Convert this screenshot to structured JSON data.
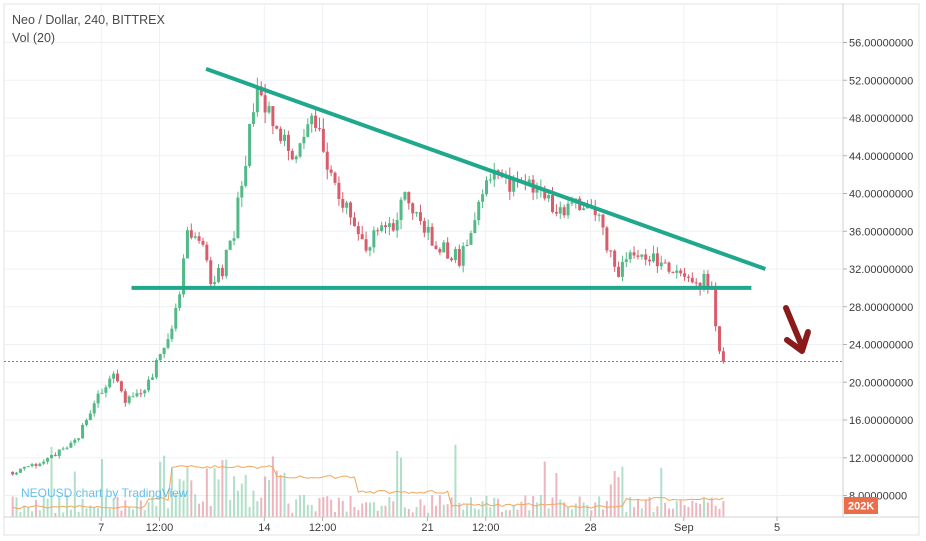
{
  "header": {
    "symbol_line": "Neo / Dollar, 240, BITTREX",
    "volume_line": "Vol (20)"
  },
  "watermark": "NEOUSD chart by TradingView",
  "volume_badge": "202K",
  "colors": {
    "up": "#53b987",
    "down": "#d75d6d",
    "trendline": "#1fa88c",
    "ma_line": "#f2a65a",
    "arrow": "#8b1a1a",
    "badge": "#eb6d4a",
    "grid": "#eef1f4"
  },
  "chart_data": {
    "type": "candlestick",
    "title": "Neo / Dollar, 240, BITTREX",
    "y_axis": {
      "range": [
        7.5,
        59
      ],
      "ticks": [
        8,
        12,
        16,
        20,
        24,
        28,
        32,
        36,
        40,
        44,
        48,
        52,
        56
      ],
      "tick_labels": [
        "8.00000000",
        "12.00000000",
        "16.00000000",
        "20.00000000",
        "24.00000000",
        "28.00000000",
        "32.00000000",
        "36.00000000",
        "40.00000000",
        "44.00000000",
        "48.00000000",
        "52.00000000",
        "56.00000000"
      ]
    },
    "x_axis": {
      "range": [
        3,
        32.5
      ],
      "ticks": [
        {
          "label": "7",
          "day": 7
        },
        {
          "label": "12:00",
          "day": 9.5
        },
        {
          "label": "14",
          "day": 14
        },
        {
          "label": "12:00",
          "day": 16.5
        },
        {
          "label": "21",
          "day": 21
        },
        {
          "label": "12:00",
          "day": 23.5
        },
        {
          "label": "28",
          "day": 28
        },
        {
          "label": "Sep",
          "day": 32
        },
        {
          "label": "5",
          "day": 36
        }
      ]
    },
    "price_path": [
      [
        3.2,
        10.5
      ],
      [
        4.5,
        11.5
      ],
      [
        6.0,
        14.0
      ],
      [
        6.6,
        17.5
      ],
      [
        7.5,
        21.0
      ],
      [
        8.0,
        18.0
      ],
      [
        8.6,
        18.5
      ],
      [
        9.2,
        21.0
      ],
      [
        9.8,
        24.0
      ],
      [
        10.4,
        30.0
      ],
      [
        10.7,
        36.0
      ],
      [
        11.3,
        35.0
      ],
      [
        11.7,
        31.0
      ],
      [
        12.2,
        32.0
      ],
      [
        12.7,
        36.0
      ],
      [
        13.0,
        41.0
      ],
      [
        13.4,
        47.0
      ],
      [
        13.7,
        51.0
      ],
      [
        14.4,
        48.0
      ],
      [
        14.9,
        45.0
      ],
      [
        15.4,
        43.0
      ],
      [
        16.0,
        49.0
      ],
      [
        16.6,
        44.0
      ],
      [
        17.2,
        40.0
      ],
      [
        17.8,
        37.0
      ],
      [
        18.4,
        34.0
      ],
      [
        18.9,
        37.0
      ],
      [
        19.4,
        36.0
      ],
      [
        20.0,
        40.0
      ],
      [
        20.6,
        38.0
      ],
      [
        21.2,
        35.0
      ],
      [
        21.8,
        34.0
      ],
      [
        22.4,
        33.0
      ],
      [
        22.9,
        36.0
      ],
      [
        23.4,
        40.0
      ],
      [
        24.0,
        42.0
      ],
      [
        24.6,
        41.0
      ],
      [
        25.1,
        42.0
      ],
      [
        25.6,
        40.0
      ],
      [
        26.2,
        39.0
      ],
      [
        26.8,
        38.0
      ],
      [
        27.4,
        39.0
      ],
      [
        27.9,
        38.0
      ],
      [
        28.4,
        37.0
      ],
      [
        28.8,
        33.5
      ],
      [
        29.2,
        31.5
      ],
      [
        29.6,
        33.0
      ],
      [
        30.2,
        34.0
      ],
      [
        30.8,
        33.0
      ],
      [
        31.4,
        32.0
      ],
      [
        32.0,
        31.5
      ],
      [
        32.4,
        30.0
      ],
      [
        32.9,
        31.0
      ],
      [
        33.2,
        30.0
      ],
      [
        33.5,
        23.5
      ],
      [
        33.7,
        22.2
      ]
    ],
    "current_price": 22.2,
    "annotations": {
      "descending_trendline": {
        "from": [
          11.5,
          53.2
        ],
        "to": [
          35.5,
          32.0
        ]
      },
      "support_line": {
        "from": [
          8.3,
          30.0
        ],
        "to": [
          34.9,
          30.0
        ]
      },
      "arrow": "down"
    },
    "volume": {
      "indicator": "Vol (20)",
      "last_value": "202K"
    }
  }
}
